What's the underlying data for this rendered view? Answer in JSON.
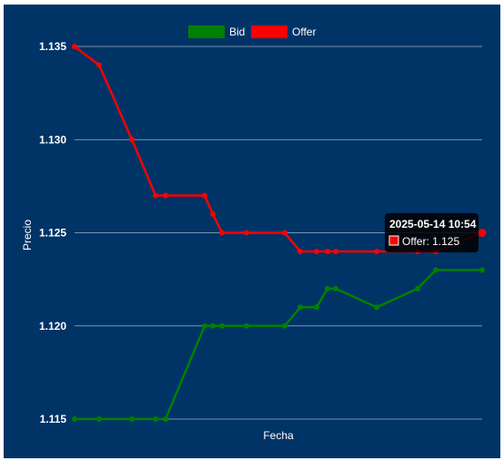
{
  "chart_data": {
    "type": "line",
    "xlabel": "Fecha",
    "ylabel": "Precio",
    "ylim": [
      1.115,
      1.135
    ],
    "yticks": [
      "1.135",
      "1.130",
      "1.125",
      "1.120",
      "1.115"
    ],
    "grid": true,
    "legend_position": "top-center",
    "series": [
      {
        "name": "Bid",
        "color": "#008000",
        "values": [
          1.115,
          1.115,
          1.115,
          1.115,
          1.115,
          1.12,
          1.12,
          1.12,
          1.12,
          1.12,
          1.121,
          1.121,
          1.122,
          1.122,
          1.121,
          1.122,
          1.123,
          1.123
        ]
      },
      {
        "name": "Offer",
        "color": "#ff0000",
        "values": [
          1.135,
          1.134,
          1.13,
          1.127,
          1.127,
          1.127,
          1.126,
          1.125,
          1.125,
          1.125,
          1.124,
          1.124,
          1.124,
          1.124,
          1.124,
          1.124,
          1.124,
          1.125
        ]
      }
    ]
  },
  "tooltip": {
    "title": "2025-05-14 10:54",
    "label": "Offer: 1.125",
    "swatch_color": "#ff0000"
  }
}
